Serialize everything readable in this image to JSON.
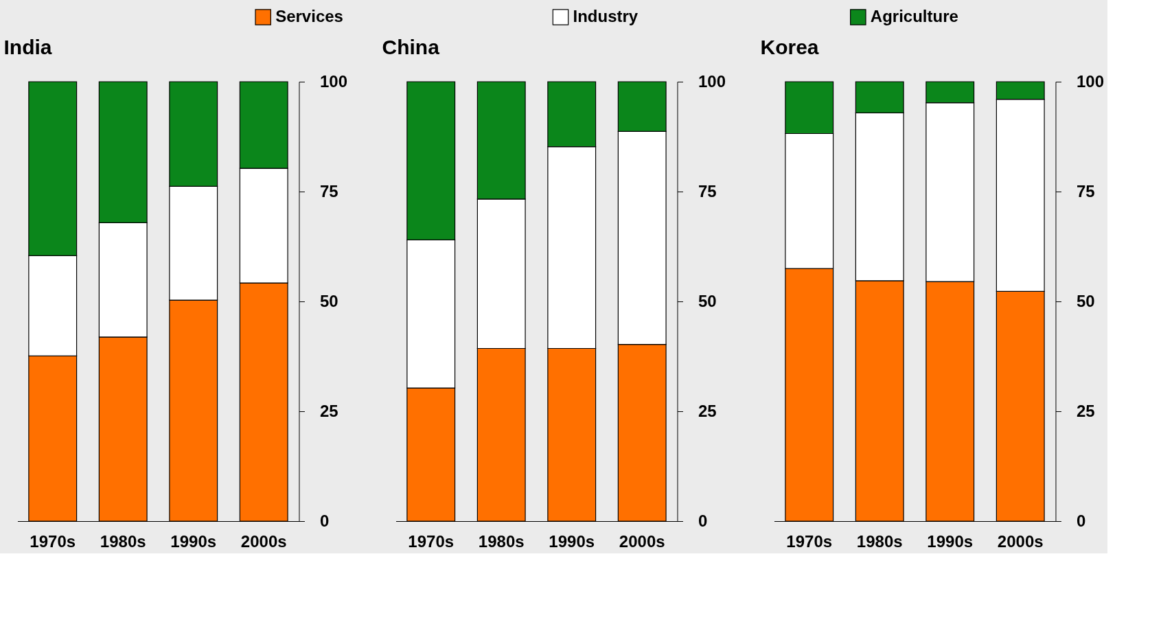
{
  "chart_data": [
    {
      "type": "bar",
      "title": "India",
      "stacked": true,
      "legend": "top",
      "categories": [
        "1970s",
        "1980s",
        "1990s",
        "2000s"
      ],
      "ylim": [
        0,
        100
      ],
      "yticks": [
        0,
        25,
        50,
        75,
        100
      ],
      "grid": false,
      "series": [
        {
          "name": "Services",
          "color": "#ff7000",
          "values": [
            37.6,
            41.9,
            50.3,
            54.2
          ]
        },
        {
          "name": "Industry",
          "color": "#ffffff",
          "values": [
            22.8,
            26.0,
            25.9,
            26.1
          ]
        },
        {
          "name": "Agriculture",
          "color": "#0b861b",
          "values": [
            39.6,
            32.1,
            23.8,
            19.7
          ]
        }
      ]
    },
    {
      "type": "bar",
      "title": "China",
      "stacked": true,
      "categories": [
        "1970s",
        "1980s",
        "1990s",
        "2000s"
      ],
      "ylim": [
        0,
        100
      ],
      "yticks": [
        0,
        25,
        50,
        75,
        100
      ],
      "grid": false,
      "series": [
        {
          "name": "Services",
          "color": "#ff7000",
          "values": [
            30.3,
            39.3,
            39.3,
            40.2
          ]
        },
        {
          "name": "Industry",
          "color": "#ffffff",
          "values": [
            33.7,
            34.0,
            45.9,
            48.5
          ]
        },
        {
          "name": "Agriculture",
          "color": "#0b861b",
          "values": [
            36.0,
            26.7,
            14.8,
            11.3
          ]
        }
      ]
    },
    {
      "type": "bar",
      "title": "Korea",
      "stacked": true,
      "categories": [
        "1970s",
        "1980s",
        "1990s",
        "2000s"
      ],
      "ylim": [
        0,
        100
      ],
      "yticks": [
        0,
        25,
        50,
        75,
        100
      ],
      "grid": false,
      "series": [
        {
          "name": "Services",
          "color": "#ff7000",
          "values": [
            57.5,
            54.7,
            54.5,
            52.3
          ]
        },
        {
          "name": "Industry",
          "color": "#ffffff",
          "values": [
            30.7,
            38.2,
            40.7,
            43.7
          ]
        },
        {
          "name": "Agriculture",
          "color": "#0b861b",
          "values": [
            11.8,
            7.1,
            4.8,
            4.0
          ]
        }
      ]
    }
  ]
}
